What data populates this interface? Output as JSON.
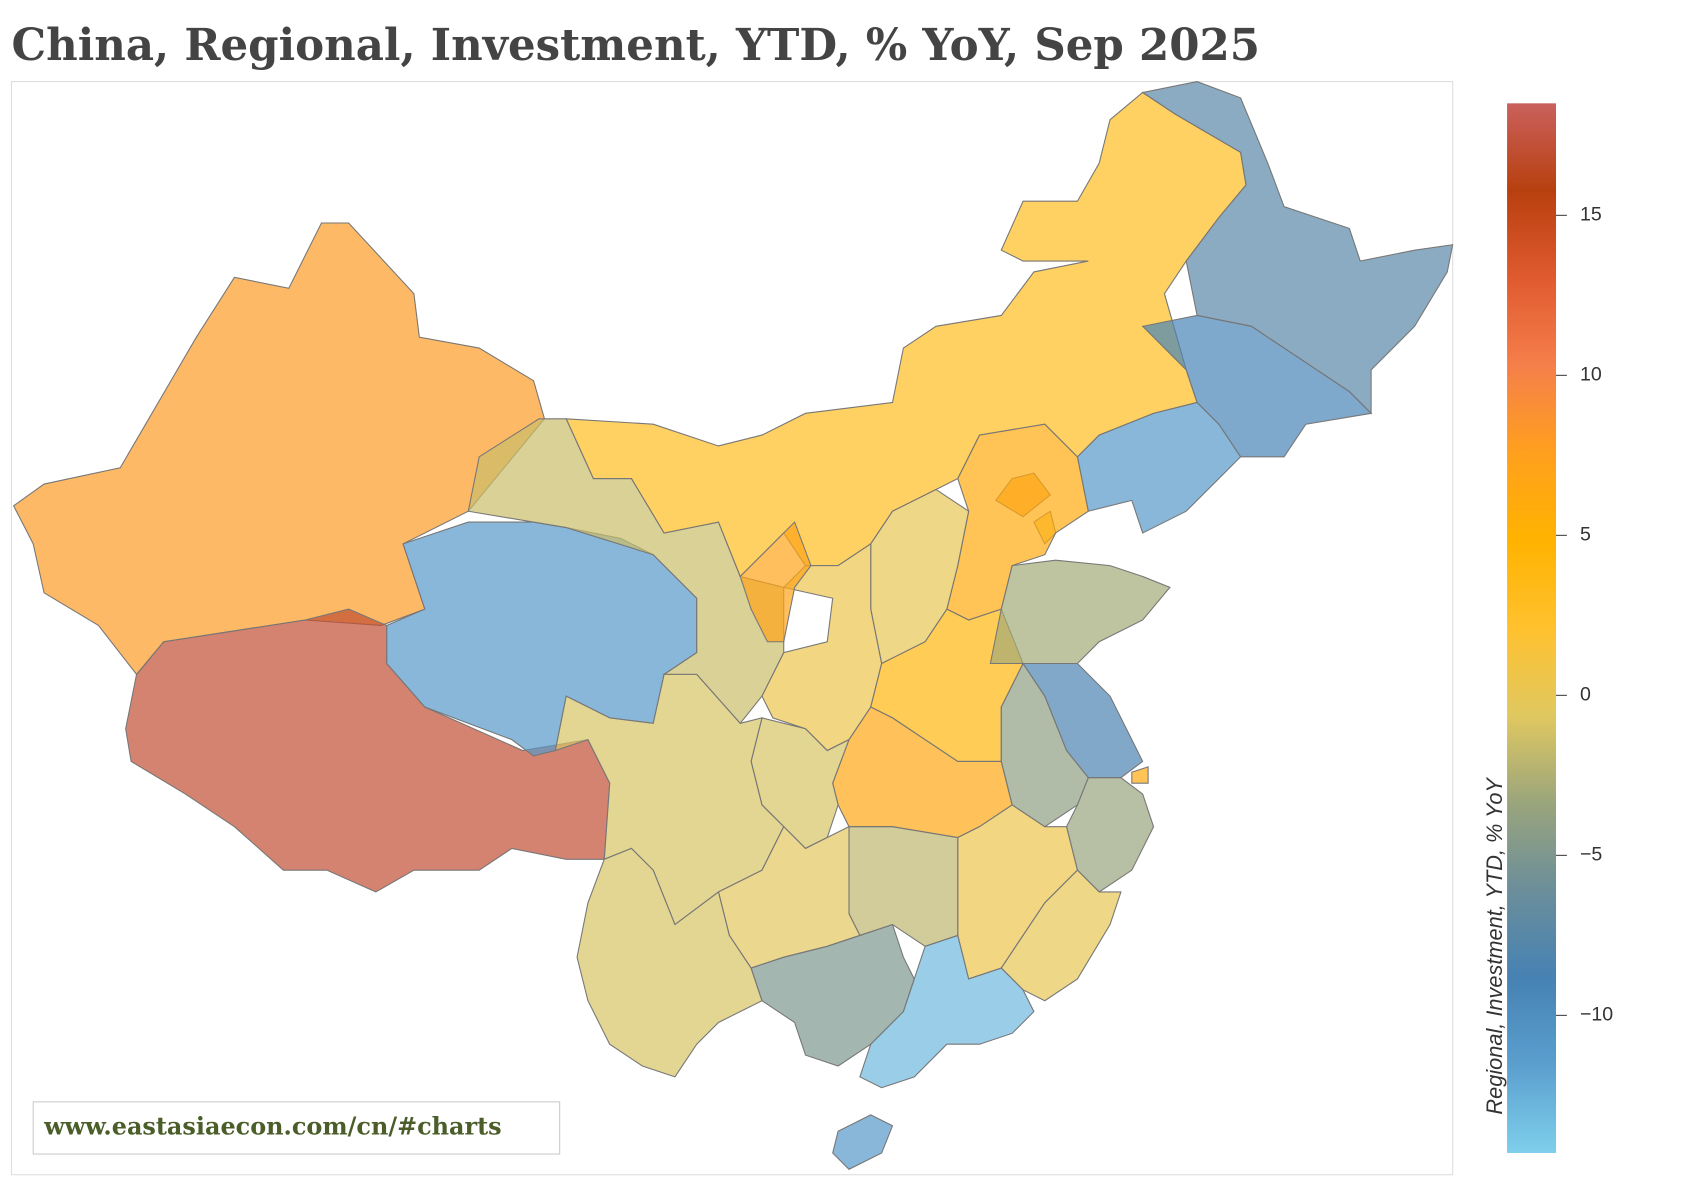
{
  "chart_data": {
    "type": "choropleth",
    "title": "China, Regional, Investment, YTD, % YoY, Sep 2025",
    "colorbar_title": "Regional, Investment, YTD, % YoY",
    "source": "www.eastasiaecon.com/cn/#charts",
    "values": [
      8,
      17,
      -11,
      -1.5,
      3,
      -7.5,
      -9,
      -11,
      8,
      1,
      6,
      0,
      0.5,
      7,
      4,
      -3,
      6.5,
      -8.5,
      6,
      -4,
      -3.5,
      0.5,
      0,
      -2,
      -1,
      -1,
      -0.5,
      -1,
      -5,
      -13,
      -11
    ],
    "clim": [
      -14.3,
      18.5
    ],
    "colorscale": [
      "#7ecfeb",
      "#5b9fcf",
      "#4682b4",
      "#6b8e9a",
      "#9aa57c",
      "#e0c860",
      "#ffc12e",
      "#ffb300",
      "#ffa01e",
      "#f57f4a",
      "#e05a30",
      "#b8400f",
      "#c9605c"
    ],
    "yticks": [
      {
        "value": -10,
        "label": "−10"
      },
      {
        "value": -5,
        "label": "−5"
      },
      0,
      5,
      10,
      15
    ]
  }
}
